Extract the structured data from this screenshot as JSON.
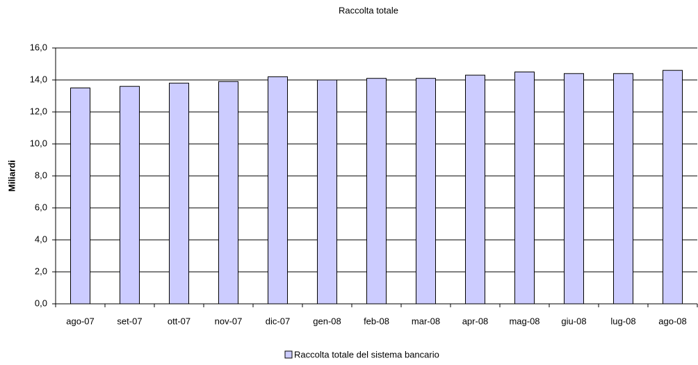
{
  "chart_data": {
    "type": "bar",
    "title": "Raccolta totale",
    "y_label": "Miliardi",
    "categories": [
      "ago-07",
      "set-07",
      "ott-07",
      "nov-07",
      "dic-07",
      "gen-08",
      "feb-08",
      "mar-08",
      "apr-08",
      "mag-08",
      "giu-08",
      "lug-08",
      "ago-08"
    ],
    "series": [
      {
        "name": "Raccolta totale del sistema bancario",
        "color": "#ccccff",
        "values": [
          13.5,
          13.6,
          13.8,
          13.9,
          14.2,
          14.0,
          14.1,
          14.1,
          14.3,
          14.5,
          14.4,
          14.4,
          14.6
        ]
      }
    ],
    "ylim": [
      0,
      16
    ],
    "yticks": [
      {
        "value": 0,
        "label": "0,0"
      },
      {
        "value": 2,
        "label": "2,0"
      },
      {
        "value": 4,
        "label": "4,0"
      },
      {
        "value": 6,
        "label": "6,0"
      },
      {
        "value": 8,
        "label": "8,0"
      },
      {
        "value": 10,
        "label": "10,0"
      },
      {
        "value": 12,
        "label": "12,0"
      },
      {
        "value": 14,
        "label": "14,0"
      },
      {
        "value": 16,
        "label": "16,0"
      }
    ],
    "grid": true,
    "legend": "bottom"
  }
}
